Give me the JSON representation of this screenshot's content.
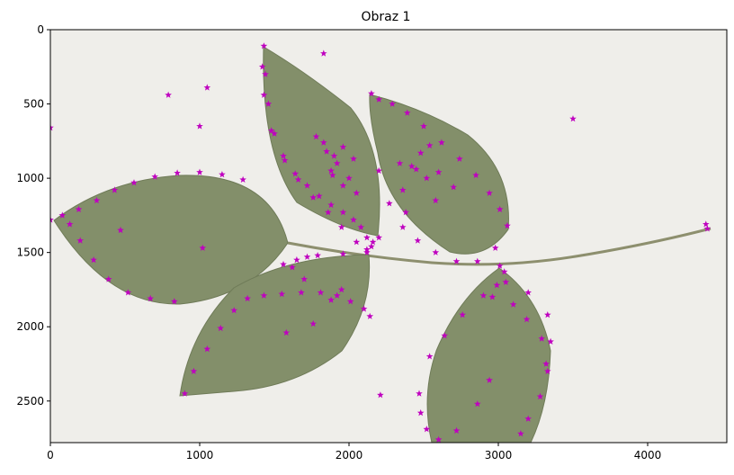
{
  "figure": {
    "title": "Obraz 1",
    "marker_color": "#bf00bf",
    "marker": "star",
    "background_color": "#efeeea",
    "leaf_color": "#838f6a"
  },
  "chart_data": {
    "type": "scatter",
    "title": "Obraz 1",
    "xlim": [
      0,
      4530
    ],
    "ylim": [
      2780,
      0
    ],
    "x_ticks": [
      0,
      1000,
      2000,
      3000,
      4000
    ],
    "y_ticks": [
      0,
      500,
      1000,
      1500,
      2000,
      2500
    ],
    "x_tick_labels": [
      "0",
      "1000",
      "2000",
      "3000",
      "4000"
    ],
    "y_tick_labels": [
      "0",
      "500",
      "1000",
      "1500",
      "2000",
      "2500"
    ],
    "grid": false,
    "series": [
      {
        "marker": "star",
        "color": "#bf00bf",
        "x": [
          0,
          1050,
          790,
          1000,
          3500,
          1830,
          470,
          1020,
          2210,
          4390,
          4400,
          1900,
          1920,
          1850,
          1880,
          2000,
          1960,
          1780,
          1830,
          2050,
          1890,
          1960,
          2030,
          2340,
          2450,
          2520,
          2360,
          2380,
          2480,
          2600,
          2700,
          2580,
          2420,
          2540,
          1560,
          1650,
          1720,
          1790,
          1960,
          2120,
          2160,
          2200,
          1580,
          1760,
          1880,
          1950,
          1700,
          1620,
          3010,
          3040,
          2990,
          2960,
          3100,
          3190,
          3290,
          3320,
          2940,
          2860,
          2720,
          2600,
          2520,
          2480,
          2470,
          2540,
          2640,
          2760,
          2900,
          3050,
          3200,
          3330,
          3350,
          3330,
          3280,
          3200,
          3150,
          1430,
          1440,
          1460,
          1500,
          1560,
          1640,
          1720,
          1800,
          1880,
          1960,
          2030,
          2080,
          2120,
          2150,
          2120,
          2050,
          1950,
          1860,
          1760,
          1660,
          1570,
          1480,
          1430,
          1420,
          2150,
          2200,
          2290,
          2390,
          2500,
          2620,
          2740,
          2850,
          2940,
          3010,
          3060,
          2980,
          2860,
          2720,
          2580,
          2460,
          2360,
          2270,
          2200,
          0,
          80,
          190,
          310,
          430,
          560,
          700,
          850,
          1000,
          1150,
          1290,
          130,
          200,
          290,
          390,
          520,
          670,
          830,
          900,
          960,
          1050,
          1140,
          1230,
          1320,
          1430,
          1550,
          1680,
          1810,
          1920,
          2010,
          2100,
          2140
        ]
      }
    ]
  }
}
